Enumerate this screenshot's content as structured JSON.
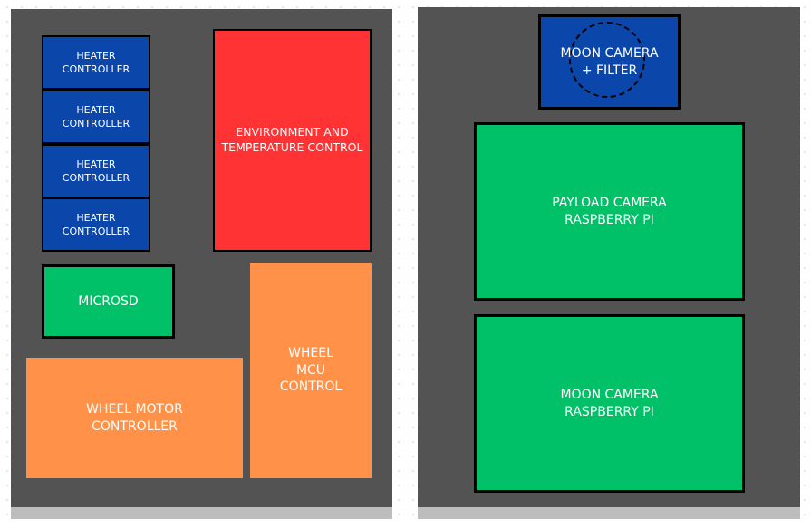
{
  "left_panel": {
    "heater_controllers": [
      {
        "label": "HEATER\nCONTROLLER"
      },
      {
        "label": "HEATER\nCONTROLLER"
      },
      {
        "label": "HEATER\nCONTROLLER"
      },
      {
        "label": "HEATER\nCONTROLLER"
      }
    ],
    "environment_control": {
      "label": "ENVIRONMENT AND\nTEMPERATURE CONTROL"
    },
    "microsd": {
      "label": "MICROSD"
    },
    "wheel_motor_controller": {
      "label": "WHEEL MOTOR\nCONTROLLER"
    },
    "wheel_mcu_control": {
      "label": "WHEEL\nMCU\nCONTROL"
    }
  },
  "right_panel": {
    "moon_camera_filter": {
      "label": "MOON CAMERA\n+ FILTER"
    },
    "payload_camera_pi": {
      "label": "PAYLOAD CAMERA\nRASPBERRY PI"
    },
    "moon_camera_pi": {
      "label": "MOON CAMERA\nRASPBERRY PI"
    }
  },
  "colors": {
    "panel": "#535353",
    "heater": "#0b46aa",
    "environment": "#ff3333",
    "green": "#00c167",
    "orange": "#ff9148"
  }
}
